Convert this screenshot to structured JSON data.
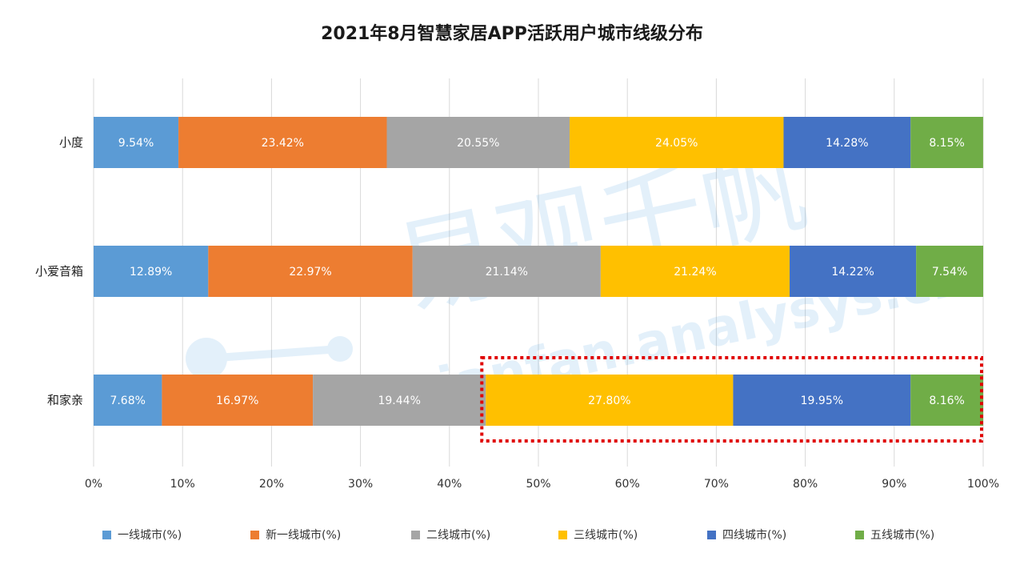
{
  "chart_data": {
    "type": "bar",
    "orientation": "horizontal",
    "stacked": true,
    "title": "2021年8月智慧家居APP活跃用户城市线级分布",
    "categories": [
      "小度",
      "小爱音箱",
      "和家亲"
    ],
    "series": [
      {
        "name": "一线城市(%)",
        "color": "#5B9BD5",
        "values": [
          9.54,
          12.89,
          7.68
        ],
        "labels": [
          "9.54%",
          "12.89%",
          "7.68%"
        ]
      },
      {
        "name": "新一线城市(%)",
        "color": "#ED7D31",
        "values": [
          23.42,
          22.97,
          16.97
        ],
        "labels": [
          "23.42%",
          "22.97%",
          "16.97%"
        ]
      },
      {
        "name": "二线城市(%)",
        "color": "#A5A5A5",
        "values": [
          20.55,
          21.14,
          19.44
        ],
        "labels": [
          "20.55%",
          "21.14%",
          "19.44%"
        ]
      },
      {
        "name": "三线城市(%)",
        "color": "#FFC000",
        "values": [
          24.05,
          21.24,
          27.8
        ],
        "labels": [
          "24.05%",
          "21.24%",
          "27.80%"
        ]
      },
      {
        "name": "四线城市(%)",
        "color": "#4472C4",
        "values": [
          14.28,
          14.22,
          19.95
        ],
        "labels": [
          "14.28%",
          "14.22%",
          "19.95%"
        ]
      },
      {
        "name": "五线城市(%)",
        "color": "#70AD47",
        "values": [
          8.15,
          7.54,
          8.16
        ],
        "labels": [
          "8.15%",
          "7.54%",
          "8.16%"
        ]
      }
    ],
    "x_ticks": [
      "0%",
      "10%",
      "20%",
      "30%",
      "40%",
      "50%",
      "60%",
      "70%",
      "80%",
      "90%",
      "100%"
    ],
    "xlim": [
      0,
      100
    ],
    "grid": true,
    "legend_position": "bottom",
    "highlight": {
      "category": "和家亲",
      "from_series": "三线城市(%)",
      "to_series": "五线城市(%)",
      "style": "red dotted box"
    }
  },
  "watermark": {
    "text_cn": "易观千帆",
    "text_en": "qianfan.analysys.cn"
  }
}
